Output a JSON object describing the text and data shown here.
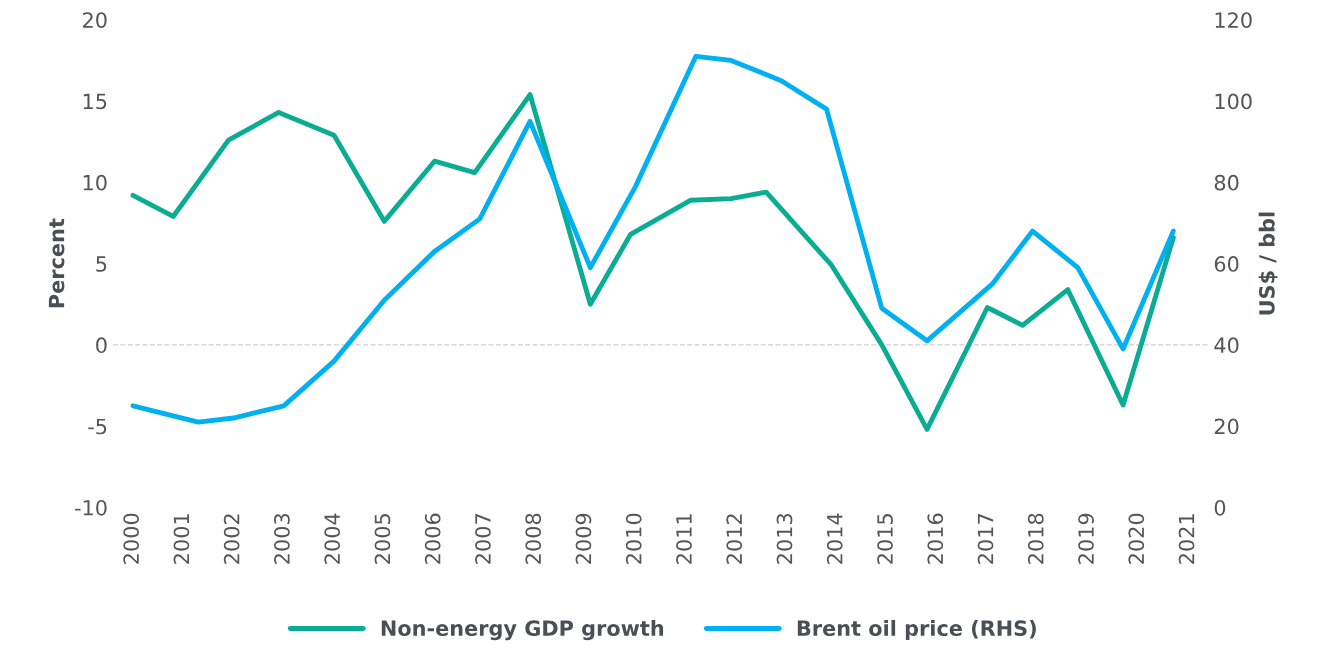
{
  "chart_data": {
    "type": "line",
    "ylabel": "Percent",
    "y2label": "US$ / bbl",
    "ylim": [
      -10,
      20
    ],
    "yticks": [
      -10,
      -5,
      0,
      5,
      10,
      15,
      20
    ],
    "y2lim": [
      0,
      120
    ],
    "y2ticks": [
      0,
      20,
      40,
      60,
      80,
      100,
      120
    ],
    "xlim": [
      1999.6,
      2021.4
    ],
    "xticks": [
      2000,
      2001,
      2002,
      2003,
      2004,
      2005,
      2006,
      2007,
      2008,
      2009,
      2010,
      2011,
      2012,
      2013,
      2014,
      2015,
      2016,
      2017,
      2018,
      2019,
      2020,
      2021
    ],
    "ref_lines": [
      {
        "axis": "y",
        "value": 0,
        "color": "#d0d0d0",
        "line_style": "dashed"
      }
    ],
    "grid": false,
    "legend": "bottom",
    "series": [
      {
        "name": "Non-energy GDP growth",
        "color": "#0aac94",
        "x": [
          2000,
          2000.8,
          2001.9,
          2002.9,
          2004,
          2005,
          2006,
          2006.8,
          2007.9,
          2009.1,
          2009.9,
          2011.1,
          2011.9,
          2012.6,
          2013.9,
          2014.9,
          2015.8,
          2017,
          2017.7,
          2018.6,
          2019.7,
          2020.7
        ],
        "values": [
          9.2,
          7.9,
          12.6,
          14.3,
          12.9,
          7.6,
          11.3,
          10.6,
          15.4,
          2.5,
          6.8,
          8.9,
          9.0,
          9.4,
          4.9,
          0,
          -5.2,
          2.3,
          1.2,
          3.4,
          -3.7,
          6.6
        ]
      },
      {
        "name": "Brent oil price (RHS)",
        "color": "#00b0f0",
        "axis": "y2",
        "x": [
          2000,
          2001.3,
          2002,
          2003,
          2004,
          2005,
          2006,
          2006.9,
          2007.9,
          2009.1,
          2010,
          2011.2,
          2011.9,
          2012.9,
          2013.8,
          2014.9,
          2015.8,
          2017.1,
          2017.9,
          2018.8,
          2019.7,
          2020.7
        ],
        "values": [
          25,
          21,
          22,
          25,
          36,
          51,
          63,
          71,
          95,
          59,
          79,
          111,
          110,
          105,
          98,
          49,
          41,
          55,
          68,
          59,
          39,
          68
        ]
      }
    ]
  }
}
